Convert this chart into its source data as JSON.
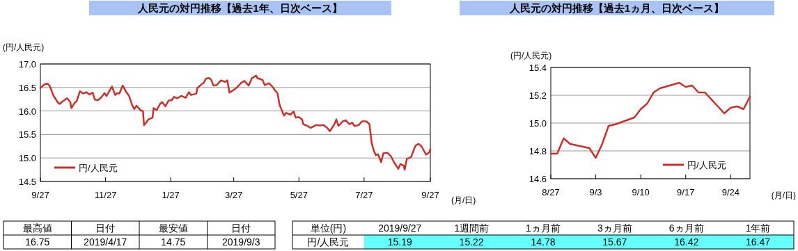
{
  "chart_data": [
    {
      "type": "line",
      "title": "人民元の対円推移【過去1年、日次ベース】",
      "ylabel": "(円/人民元)",
      "xlabel": "(月/日)",
      "x": [
        "2018-09-27",
        "2018-10-01",
        "2018-10-04",
        "2018-10-06",
        "2018-10-09",
        "2018-10-13",
        "2018-10-15",
        "2018-10-17",
        "2018-10-22",
        "2018-10-25",
        "2018-10-26",
        "2018-10-29",
        "2018-10-31",
        "2018-11-03",
        "2018-11-06",
        "2018-11-09",
        "2018-11-12",
        "2018-11-15",
        "2018-11-17",
        "2018-11-20",
        "2018-11-23",
        "2018-11-26",
        "2018-11-28",
        "2018-12-03",
        "2018-12-06",
        "2018-12-08",
        "2018-12-10",
        "2018-12-13",
        "2018-12-16",
        "2018-12-19",
        "2018-12-22",
        "2018-12-24",
        "2018-12-26",
        "2018-12-30",
        "2019-01-01",
        "2019-01-02",
        "2019-01-04",
        "2019-01-06",
        "2019-01-10",
        "2019-01-11",
        "2019-01-14",
        "2019-01-17",
        "2019-01-19",
        "2019-01-22",
        "2019-01-25",
        "2019-01-28",
        "2019-01-30",
        "2019-02-02",
        "2019-02-06",
        "2019-02-10",
        "2019-02-13",
        "2019-02-15",
        "2019-02-20",
        "2019-02-21",
        "2019-02-25",
        "2019-02-27",
        "2019-03-01",
        "2019-03-04",
        "2019-03-06",
        "2019-03-08",
        "2019-03-11",
        "2019-03-15",
        "2019-03-19",
        "2019-03-21",
        "2019-03-23",
        "2019-03-27",
        "2019-03-30",
        "2019-04-03",
        "2019-04-06",
        "2019-04-10",
        "2019-04-13",
        "2019-04-17",
        "2019-04-18",
        "2019-04-23",
        "2019-04-25",
        "2019-04-29",
        "2019-05-02",
        "2019-05-07",
        "2019-05-09",
        "2019-05-10",
        "2019-05-13",
        "2019-05-15",
        "2019-05-19",
        "2019-05-22",
        "2019-05-24",
        "2019-05-27",
        "2019-05-30",
        "2019-05-31",
        "2019-06-04",
        "2019-06-07",
        "2019-06-12",
        "2019-06-16",
        "2019-06-19",
        "2019-06-22",
        "2019-06-25",
        "2019-06-29",
        "2019-07-01",
        "2019-07-03",
        "2019-07-07",
        "2019-07-10",
        "2019-07-13",
        "2019-07-16",
        "2019-07-18",
        "2019-07-22",
        "2019-07-25",
        "2019-07-29",
        "2019-08-01",
        "2019-08-03",
        "2019-08-05",
        "2019-08-07",
        "2019-08-09",
        "2019-08-12",
        "2019-08-14",
        "2019-08-18",
        "2019-08-21",
        "2019-08-24",
        "2019-08-28",
        "2019-08-30",
        "2019-09-02",
        "2019-09-03",
        "2019-09-05",
        "2019-09-09",
        "2019-09-13",
        "2019-09-16",
        "2019-09-19",
        "2019-09-23",
        "2019-09-26",
        "2019-09-27"
      ],
      "series": [
        {
          "name": "円/人民元",
          "color": "#c8302c",
          "values": [
            16.49,
            16.57,
            16.58,
            16.52,
            16.34,
            16.19,
            16.15,
            16.19,
            16.27,
            16.19,
            16.06,
            16.17,
            16.21,
            16.42,
            16.37,
            16.4,
            16.35,
            16.39,
            16.24,
            16.23,
            16.29,
            16.38,
            16.32,
            16.52,
            16.34,
            16.38,
            16.37,
            16.54,
            16.42,
            16.32,
            16.12,
            16.04,
            16.11,
            16.01,
            16.0,
            15.7,
            15.75,
            15.82,
            15.86,
            16.06,
            16.02,
            16.15,
            16.19,
            16.1,
            16.22,
            16.23,
            16.3,
            16.27,
            16.32,
            16.28,
            16.4,
            16.34,
            16.37,
            16.49,
            16.57,
            16.6,
            16.69,
            16.7,
            16.66,
            16.54,
            16.55,
            16.65,
            16.62,
            16.65,
            16.39,
            16.45,
            16.5,
            16.6,
            16.64,
            16.54,
            16.7,
            16.75,
            16.7,
            16.66,
            16.55,
            16.59,
            16.52,
            16.37,
            16.12,
            16.07,
            15.9,
            15.96,
            15.92,
            15.99,
            15.86,
            15.87,
            15.82,
            15.72,
            15.68,
            15.64,
            15.7,
            15.69,
            15.7,
            15.65,
            15.57,
            15.71,
            15.82,
            15.68,
            15.78,
            15.8,
            15.72,
            15.75,
            15.68,
            15.7,
            15.78,
            15.78,
            15.72,
            15.33,
            15.16,
            15.06,
            15.08,
            14.91,
            15.1,
            15.11,
            15.04,
            14.91,
            14.77,
            14.87,
            14.84,
            14.75,
            14.98,
            15.02,
            15.26,
            15.3,
            15.24,
            15.07,
            15.12,
            15.19
          ]
        }
      ],
      "xlim": [
        "2018-09-27",
        "2019-09-27"
      ],
      "xticks": [
        {
          "value": "2018-09-27",
          "label": "9/27"
        },
        {
          "value": "2018-11-27",
          "label": "11/27"
        },
        {
          "value": "2019-01-27",
          "label": "1/27"
        },
        {
          "value": "2019-03-27",
          "label": "3/27"
        },
        {
          "value": "2019-05-27",
          "label": "5/27"
        },
        {
          "value": "2019-07-27",
          "label": "7/27"
        },
        {
          "value": "2019-09-27",
          "label": "9/27"
        }
      ],
      "ylim": [
        14.5,
        17
      ],
      "yticks": [
        {
          "value": 14.5,
          "label": "14.5"
        },
        {
          "value": 15,
          "label": "15.0"
        },
        {
          "value": 15.5,
          "label": "15.5"
        },
        {
          "value": 16,
          "label": "16.0"
        },
        {
          "value": 16.5,
          "label": "16.5"
        },
        {
          "value": 17,
          "label": "17.0"
        }
      ],
      "grid": "y",
      "legend": "bottom left",
      "line_style": "solid"
    },
    {
      "type": "line",
      "title": "人民元の対円推移【過去1ヵ月、日次ベース】",
      "ylabel": "(円/人民元)",
      "xlabel": "(月/日)",
      "x": [
        "2019-08-27",
        "2019-08-28",
        "2019-08-29",
        "2019-08-30",
        "2019-09-02",
        "2019-09-03",
        "2019-09-04",
        "2019-09-05",
        "2019-09-06",
        "2019-09-09",
        "2019-09-10",
        "2019-09-11",
        "2019-09-12",
        "2019-09-13",
        "2019-09-16",
        "2019-09-17",
        "2019-09-18",
        "2019-09-19",
        "2019-09-20",
        "2019-09-23",
        "2019-09-24",
        "2019-09-25",
        "2019-09-26",
        "2019-09-27"
      ],
      "series": [
        {
          "name": "円/人民元",
          "color": "#c8302c",
          "values": [
            14.78,
            14.78,
            14.89,
            14.85,
            14.82,
            14.75,
            14.85,
            14.98,
            14.99,
            15.04,
            15.1,
            15.14,
            15.22,
            15.25,
            15.29,
            15.26,
            15.27,
            15.22,
            15.22,
            15.07,
            15.11,
            15.12,
            15.1,
            15.19
          ]
        }
      ],
      "xlim": [
        "2019-08-27",
        "2019-09-27"
      ],
      "xticks": [
        {
          "value": "2019-08-27",
          "label": "8/27"
        },
        {
          "value": "2019-09-03",
          "label": "9/3"
        },
        {
          "value": "2019-09-10",
          "label": "9/10"
        },
        {
          "value": "2019-09-17",
          "label": "9/17"
        },
        {
          "value": "2019-09-24",
          "label": "9/24"
        }
      ],
      "ylim": [
        14.6,
        15.4
      ],
      "yticks": [
        {
          "value": 14.6,
          "label": "14.6"
        },
        {
          "value": 14.8,
          "label": "14.8"
        },
        {
          "value": 15,
          "label": "15.0"
        },
        {
          "value": 15.2,
          "label": "15.2"
        },
        {
          "value": 15.4,
          "label": "15.4"
        }
      ],
      "grid": "y",
      "legend": "bottom right",
      "line_style": "solid"
    },
    {
      "type": "other",
      "categories": [
        "最高値",
        "日付",
        "最安値",
        "日付"
      ],
      "value_labels": [
        "16.75",
        "2019/4/17",
        "14.75",
        "2019/9/3"
      ]
    },
    {
      "type": "other",
      "annotations": [
        "単位(円)"
      ],
      "categories": [
        "2019/9/27",
        "1週間前",
        "1ヵ月前",
        "3ヵ月前",
        "6ヵ月前",
        "1年前"
      ],
      "series": [
        {
          "name": "円/人民元",
          "color": "#66ffff",
          "values": [
            15.19,
            15.22,
            14.78,
            15.67,
            16.42,
            16.47
          ]
        }
      ],
      "data_labels": true
    }
  ]
}
